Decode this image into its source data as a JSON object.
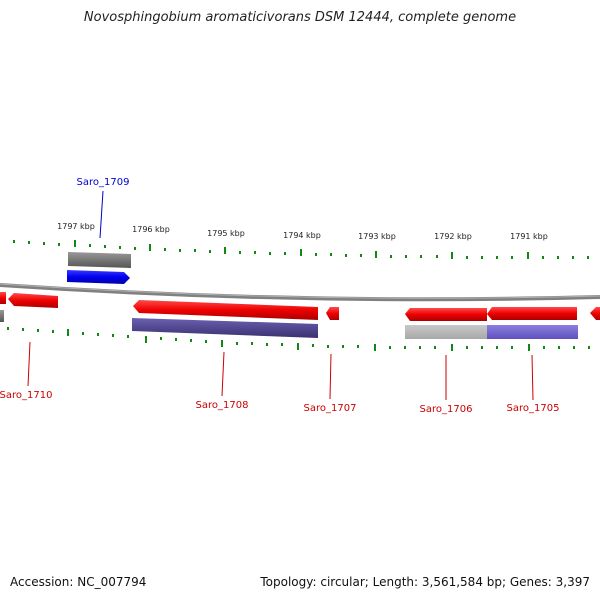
{
  "title": "Novosphingobium aromaticivorans DSM 12444, complete genome",
  "footer": {
    "accession": "Accession: NC_007794",
    "summary": "Topology: circular; Length: 3,561,584 bp; Genes: 3,397"
  },
  "kbp_labels": [
    "1797 kbp",
    "1796 kbp",
    "1795 kbp",
    "1794 kbp",
    "1793 kbp",
    "1792 kbp",
    "1791 kbp"
  ],
  "genes": [
    {
      "id": "Saro_1709",
      "color": "#0000cc"
    },
    {
      "id": "Saro_1710",
      "color": "#cc0000"
    },
    {
      "id": "Saro_1708",
      "color": "#cc0000"
    },
    {
      "id": "Saro_1707",
      "color": "#cc0000"
    },
    {
      "id": "Saro_1706",
      "color": "#cc0000"
    },
    {
      "id": "Saro_1705",
      "color": "#cc0000"
    }
  ],
  "colors": {
    "forward_gene": "#0000ee",
    "reverse_gene": "#ee0000",
    "tick": "#118811",
    "backbone": "#888888",
    "grey_feature": "#777777",
    "purple_feature": "#4a3f8f"
  }
}
